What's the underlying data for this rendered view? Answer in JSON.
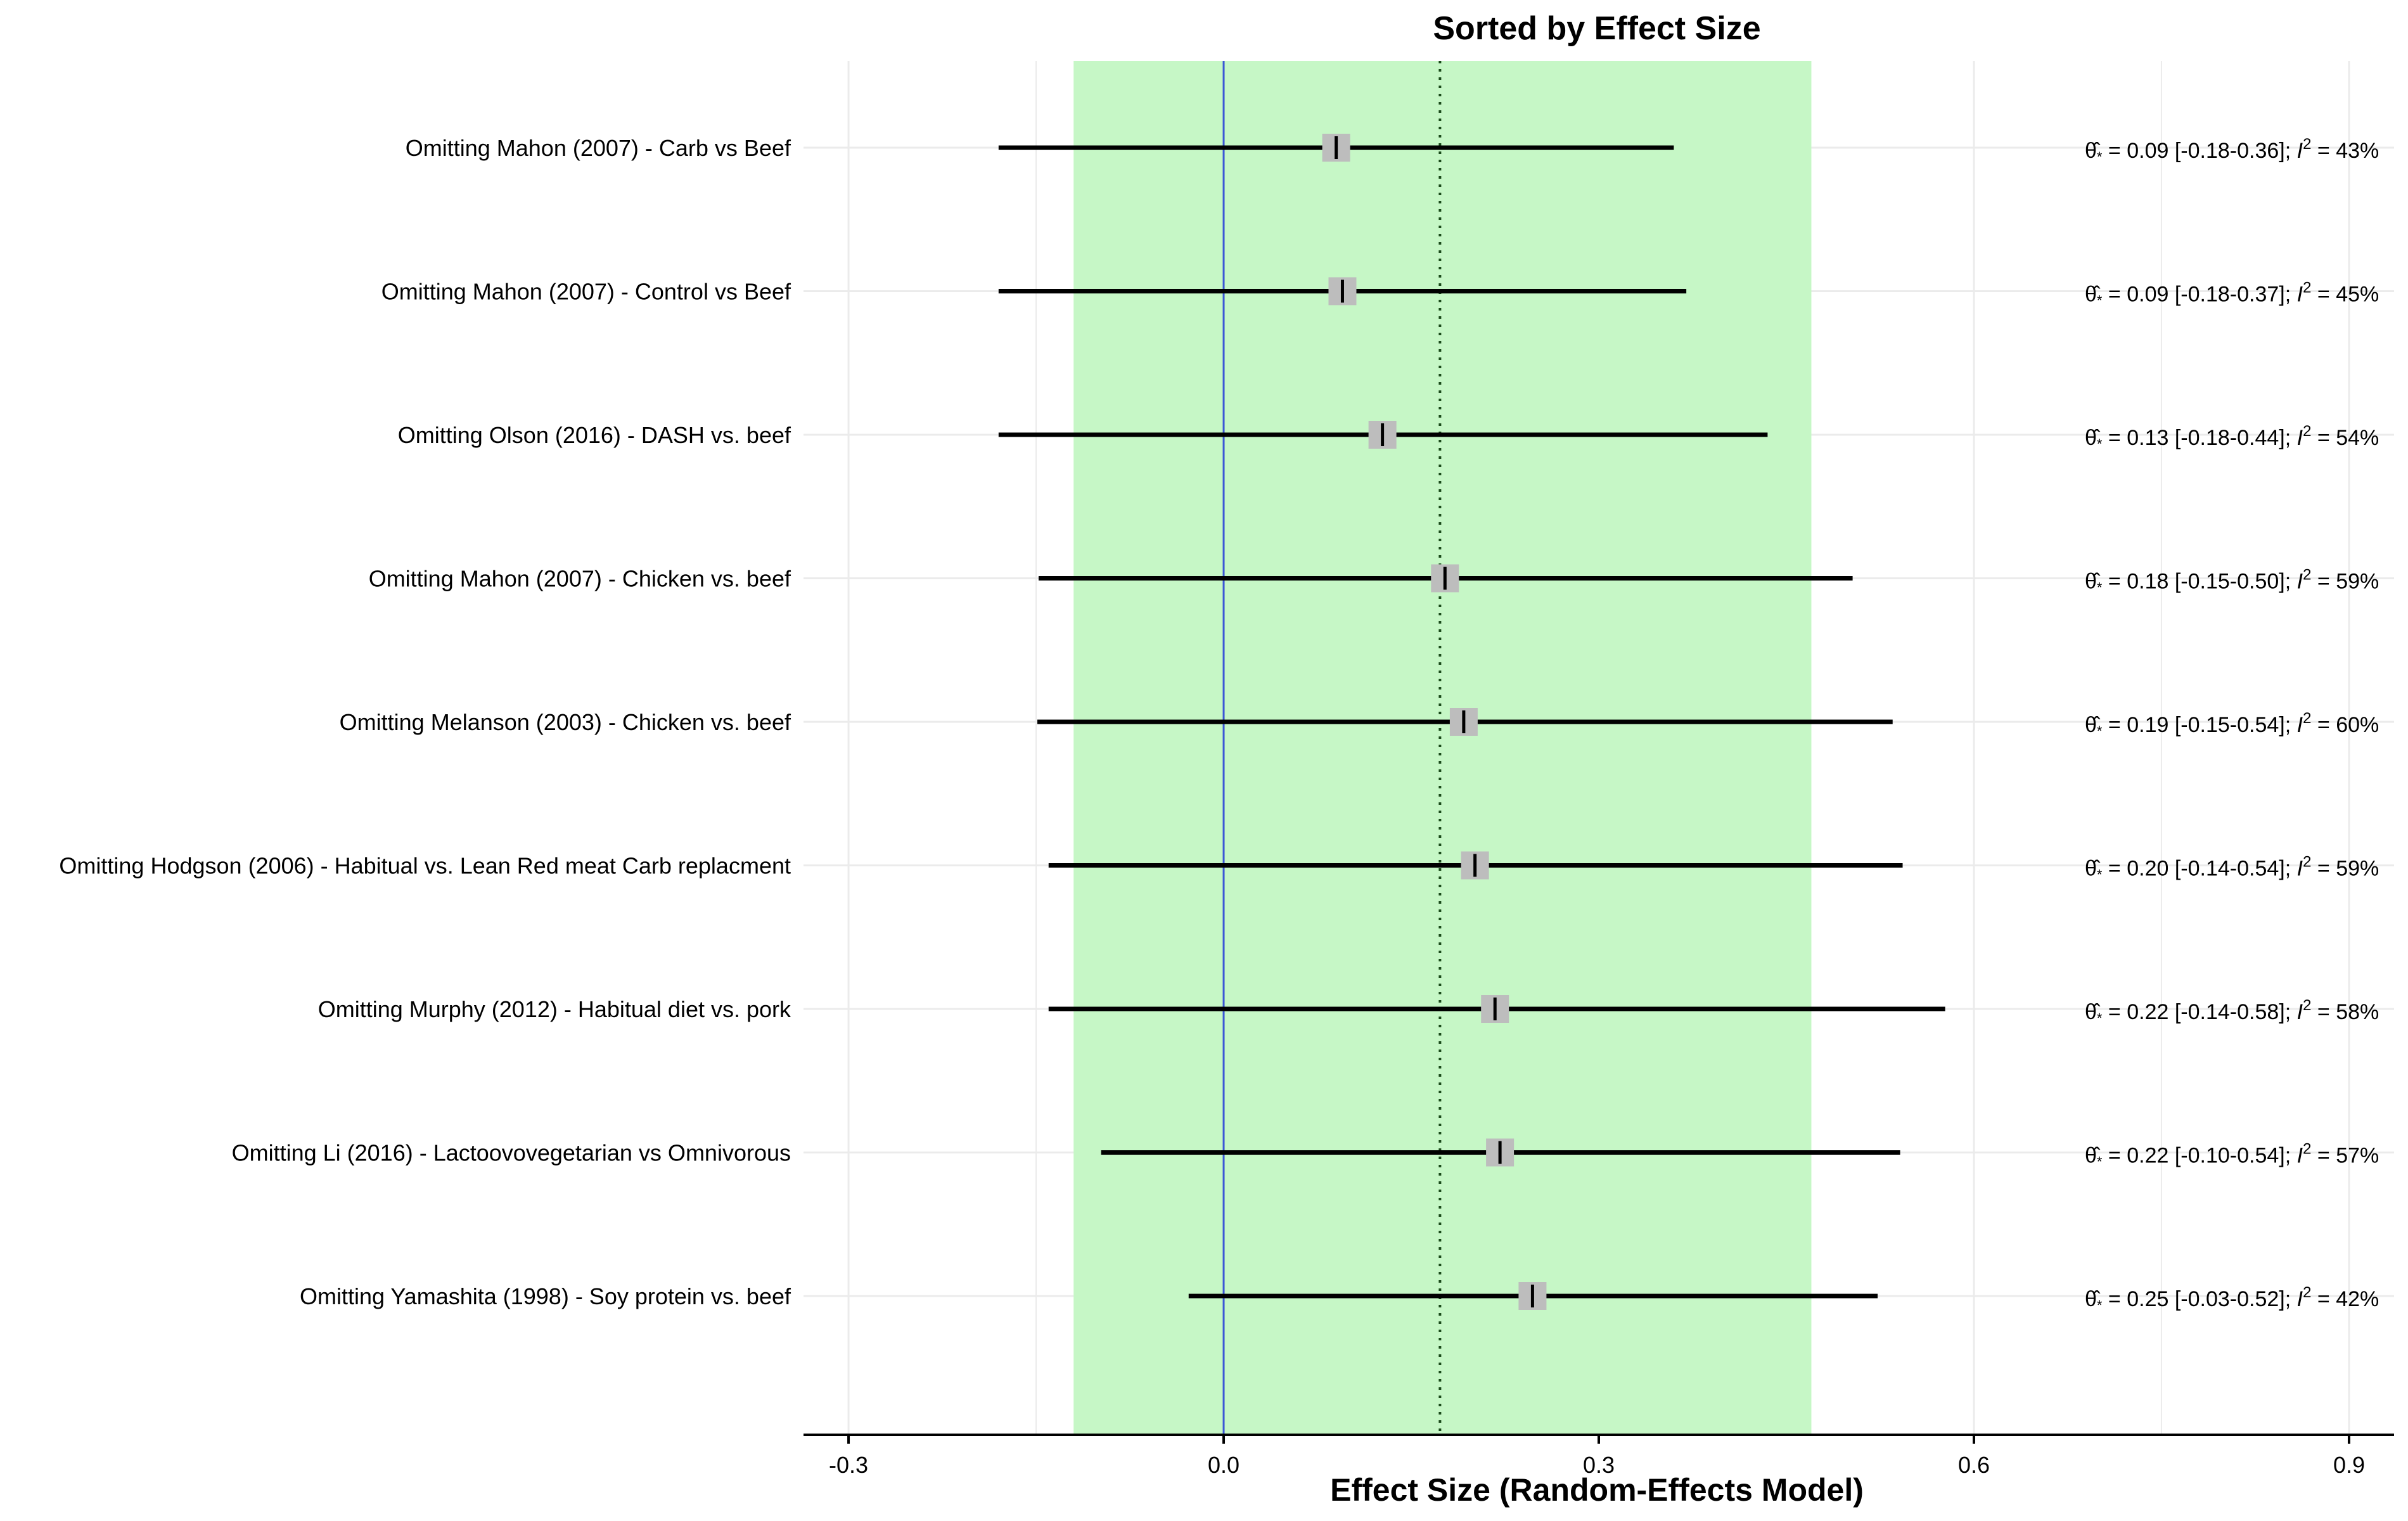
{
  "chart_data": {
    "type": "scatter",
    "title": "Sorted by Effect Size",
    "xlabel": "Effect Size (Random-Effects Model)",
    "ylabel": "",
    "xlim": [
      -0.336,
      0.936
    ],
    "x_ticks": [
      -0.3,
      0.0,
      0.3,
      0.6,
      0.9
    ],
    "x_tick_labels": [
      "-0.3",
      "0.0",
      "0.3",
      "0.6",
      "0.9"
    ],
    "grid": true,
    "prediction_band": [
      -0.12,
      0.47
    ],
    "reference_line": 0.0,
    "pooled_line": 0.173,
    "colors": {
      "band": "#c6f7c6",
      "reference_line": "#3b57d6",
      "point_box": "#bdbdbd",
      "interval": "#000000",
      "grid": "#ebebeb"
    },
    "rows": [
      {
        "label": "Omitting Mahon (2007) - Carb vs Beef",
        "estimate": 0.09,
        "lower": -0.18,
        "upper": 0.36,
        "i2": "43%",
        "estimate_text": "0.09",
        "ci_text": "[-0.18-0.36]"
      },
      {
        "label": "Omitting Mahon (2007) - Control vs Beef",
        "estimate": 0.095,
        "lower": -0.18,
        "upper": 0.37,
        "i2": "45%",
        "estimate_text": "0.09",
        "ci_text": "[-0.18-0.37]"
      },
      {
        "label": "Omitting Olson (2016) - DASH vs. beef",
        "estimate": 0.127,
        "lower": -0.18,
        "upper": 0.435,
        "i2": "54%",
        "estimate_text": "0.13",
        "ci_text": "[-0.18-0.44]"
      },
      {
        "label": "Omitting Mahon (2007) - Chicken vs. beef",
        "estimate": 0.177,
        "lower": -0.148,
        "upper": 0.503,
        "i2": "59%",
        "estimate_text": "0.18",
        "ci_text": "[-0.15-0.50]"
      },
      {
        "label": "Omitting Melanson (2003) - Chicken vs. beef",
        "estimate": 0.192,
        "lower": -0.149,
        "upper": 0.535,
        "i2": "60%",
        "estimate_text": "0.19",
        "ci_text": "[-0.15-0.54]"
      },
      {
        "label": "Omitting Hodgson (2006) - Habitual vs. Lean Red meat Carb replacment",
        "estimate": 0.201,
        "lower": -0.14,
        "upper": 0.543,
        "i2": "59%",
        "estimate_text": "0.20",
        "ci_text": "[-0.14-0.54]"
      },
      {
        "label": "Omitting Murphy (2012) - Habitual diet vs. pork",
        "estimate": 0.217,
        "lower": -0.14,
        "upper": 0.577,
        "i2": "58%",
        "estimate_text": "0.22",
        "ci_text": "[-0.14-0.58]"
      },
      {
        "label": "Omitting Li (2016) - Lactoovovegetarian vs Omnivorous",
        "estimate": 0.221,
        "lower": -0.098,
        "upper": 0.541,
        "i2": "57%",
        "estimate_text": "0.22",
        "ci_text": "[-0.10-0.54]"
      },
      {
        "label": "Omitting Yamashita (1998) - Soy protein vs. beef",
        "estimate": 0.247,
        "lower": -0.028,
        "upper": 0.523,
        "i2": "42%",
        "estimate_text": "0.25",
        "ci_text": "[-0.03-0.52]"
      }
    ]
  }
}
